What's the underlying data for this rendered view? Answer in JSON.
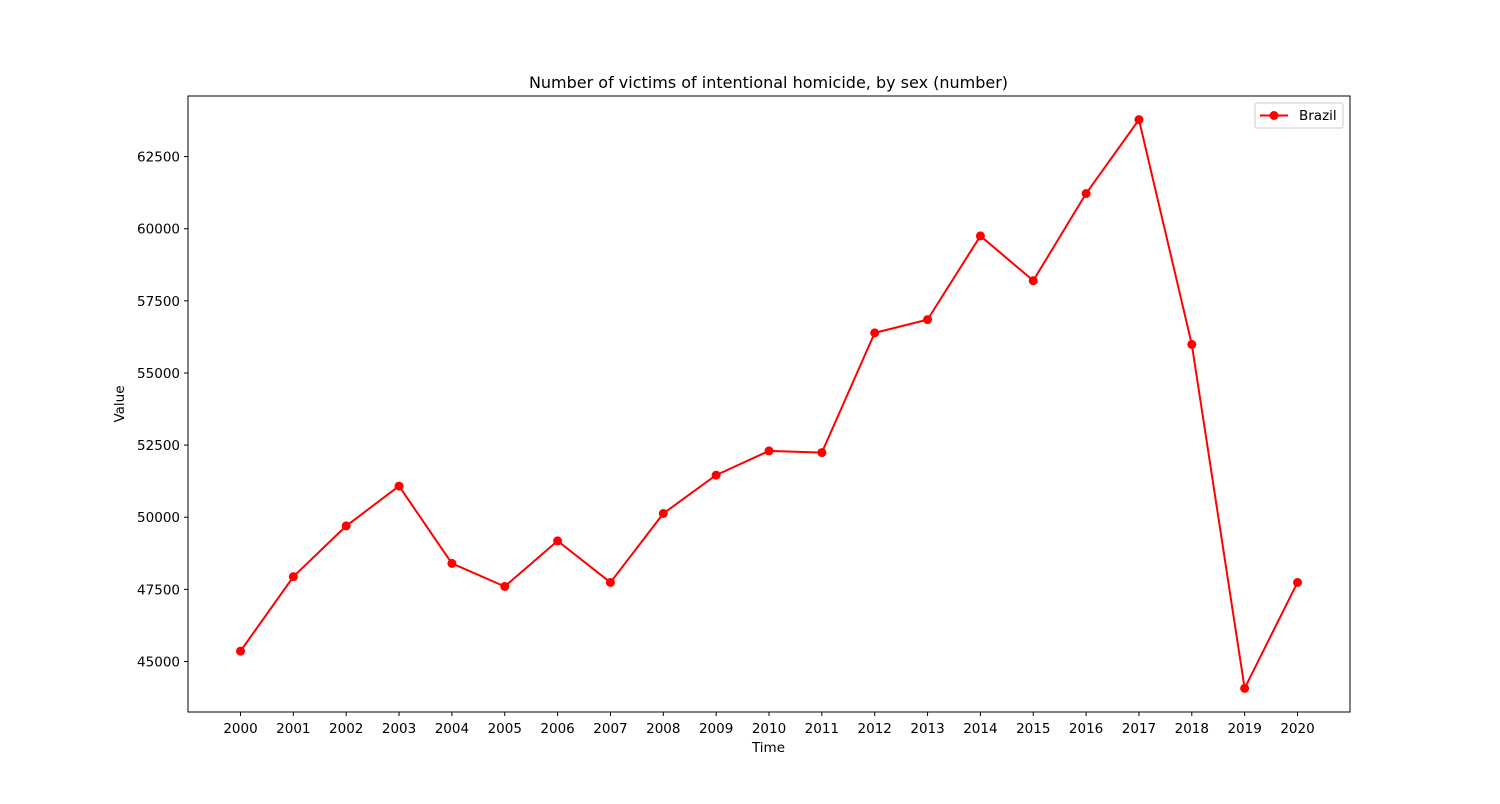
{
  "chart_data": {
    "type": "line",
    "title": "Number of victims of intentional homicide, by sex (number)",
    "xlabel": "Time",
    "ylabel": "Value",
    "categories": [
      "2000",
      "2001",
      "2002",
      "2003",
      "2004",
      "2005",
      "2006",
      "2007",
      "2008",
      "2009",
      "2010",
      "2011",
      "2012",
      "2013",
      "2014",
      "2015",
      "2016",
      "2017",
      "2018",
      "2019",
      "2020"
    ],
    "series": [
      {
        "name": "Brazil",
        "color": "#ff0000",
        "marker": "circle",
        "values": [
          45360,
          47940,
          49700,
          51080,
          48400,
          47600,
          49180,
          47740,
          50130,
          51460,
          52300,
          52240,
          56390,
          56850,
          59750,
          58200,
          61220,
          63780,
          55990,
          44070,
          47740
        ]
      }
    ],
    "yticks": [
      "45000",
      "47500",
      "50000",
      "52500",
      "55000",
      "57500",
      "60000",
      "62500"
    ],
    "ylim": [
      43250,
      64600
    ],
    "grid": false,
    "legend_position": "top-right"
  }
}
